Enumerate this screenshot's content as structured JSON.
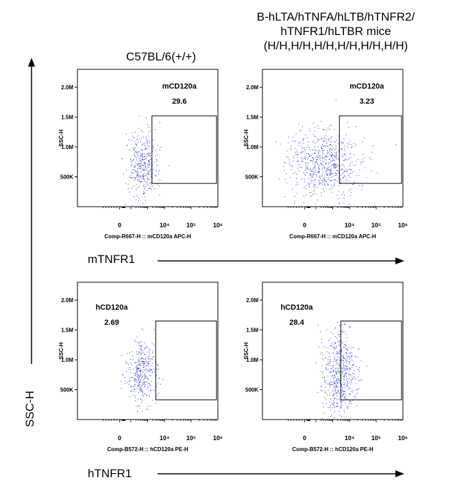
{
  "headers": {
    "left": "C57BL/6(+/+)",
    "right_lines": [
      "B-hLTA/hTNFA/hLTB/hTNFR2/",
      "hTNFR1/hLTBR mice",
      "(H/H,H/H,H/H,H/H,H/H,H/H)"
    ]
  },
  "axis_labels": {
    "y_global": "SSC-H",
    "row1_arrow": "mTNFR1",
    "row2_arrow": "hTNFR1"
  },
  "chart_data": [
    {
      "type": "scatter",
      "panel": "top-left",
      "ylabel": "SSC-H",
      "xlabel": "Comp-R667-H :: mCD120a APC-H",
      "y_ticks": [
        "500K",
        "1.0M",
        "1.5M",
        "2.0M"
      ],
      "y_tick_values": [
        500000,
        1000000,
        1500000,
        2000000
      ],
      "x_ticks": [
        "0",
        "10⁴",
        "10⁵",
        "10⁶"
      ],
      "gate": {
        "name": "mCD120a",
        "value": "29.6",
        "x_range": [
          1800,
          1000000
        ],
        "y_range": [
          390000,
          1520000
        ]
      },
      "population": {
        "x_center": 500,
        "y_center": 720000,
        "color": "#2b2bd6"
      }
    },
    {
      "type": "scatter",
      "panel": "top-right",
      "ylabel": "SSC-H",
      "xlabel": "Comp-R667-H :: mCD120a APC-H",
      "y_ticks": [
        "500K",
        "1.0M",
        "1.5M",
        "2.0M"
      ],
      "y_tick_values": [
        500000,
        1000000,
        1500000,
        2000000
      ],
      "x_ticks": [
        "0",
        "10⁴",
        "10⁵",
        "10⁶"
      ],
      "gate": {
        "name": "mCD120a",
        "value": "3.23",
        "x_range": [
          2500,
          1000000
        ],
        "y_range": [
          390000,
          1520000
        ]
      },
      "population": {
        "x_center": 300,
        "y_center": 730000,
        "color": "#2b2bd6"
      }
    },
    {
      "type": "scatter",
      "panel": "bottom-left",
      "ylabel": "SSC-H",
      "xlabel": "Comp-B572-H :: hCD120a PE-H",
      "y_ticks": [
        "500K",
        "1.0M",
        "1.5M",
        "2.0M"
      ],
      "y_tick_values": [
        500000,
        1000000,
        1500000,
        2000000
      ],
      "x_ticks": [
        "0",
        "10⁴",
        "10⁵",
        "10⁶"
      ],
      "gate": {
        "name": "hCD120a",
        "value": "2.69",
        "x_range": [
          3000,
          1000000
        ],
        "y_range": [
          330000,
          1650000
        ]
      },
      "population": {
        "x_center": 400,
        "y_center": 780000,
        "color": "#2b2bd6"
      }
    },
    {
      "type": "scatter",
      "panel": "bottom-right",
      "ylabel": "SSC-H",
      "xlabel": "Comp-B572-H :: hCD120a PE-H",
      "y_ticks": [
        "500K",
        "1.0M",
        "1.5M",
        "2.0M"
      ],
      "y_tick_values": [
        500000,
        1000000,
        1500000,
        2000000
      ],
      "x_ticks": [
        "0",
        "10⁴",
        "10⁵",
        "10⁶"
      ],
      "gate": {
        "name": "hCD120a",
        "value": "28.4",
        "x_range": [
          3000,
          1000000
        ],
        "y_range": [
          330000,
          1650000
        ]
      },
      "population": {
        "x_center": 2500,
        "y_center": 780000,
        "color": "#2b2bd6"
      }
    }
  ]
}
